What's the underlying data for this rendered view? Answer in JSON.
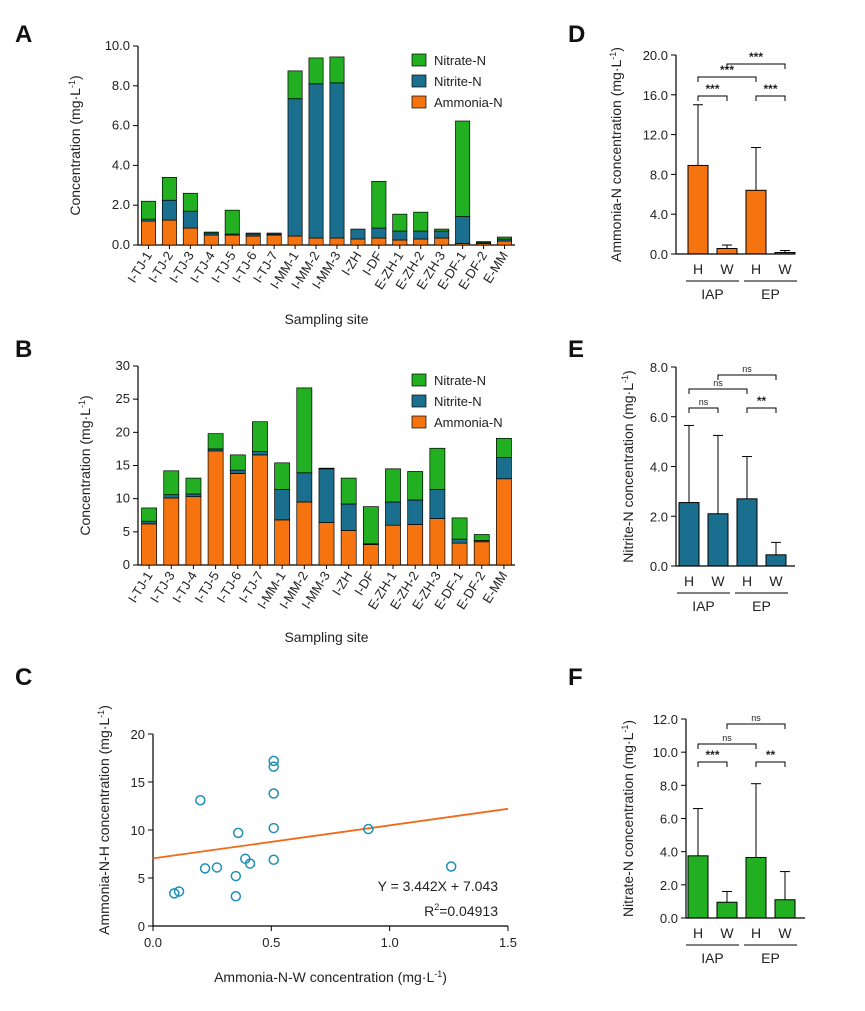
{
  "colors": {
    "nitrate": "#22b022",
    "nitrite": "#1a6e8e",
    "ammonia": "#f5740f",
    "scatter": "#1e8fb5",
    "fit": "#f06a1a"
  },
  "panel_labels": {
    "A": "A",
    "B": "B",
    "C": "C",
    "D": "D",
    "E": "E",
    "F": "F"
  },
  "chart_data": [
    {
      "id": "A",
      "type": "bar",
      "stacked": true,
      "ylabel": "Concentration (mg·L⁻¹)",
      "xlabel": "Sampling site",
      "ylim": [
        0,
        10
      ],
      "yticks": [
        "0.0",
        "2.0",
        "4.0",
        "6.0",
        "8.0",
        "10.0"
      ],
      "categories": [
        "I-TJ-1",
        "I-TJ-2",
        "I-TJ-3",
        "I-TJ-4",
        "I-TJ-5",
        "I-TJ-6",
        "I-TJ-7",
        "I-MM-1",
        "I-MM-2",
        "I-MM-3",
        "I-ZH",
        "I-DF",
        "E-ZH-1",
        "E-ZH-2",
        "E-ZH-3",
        "E-DF-1",
        "E-DF-2",
        "E-MM"
      ],
      "series": [
        {
          "name": "Ammonia-N",
          "values": [
            1.2,
            1.25,
            0.85,
            0.5,
            0.5,
            0.45,
            0.5,
            0.45,
            0.35,
            0.35,
            0.3,
            0.35,
            0.25,
            0.3,
            0.35,
            0.08,
            0.08,
            0.2
          ]
        },
        {
          "name": "Nitrite-N",
          "values": [
            0.1,
            1.0,
            0.85,
            0.1,
            0.05,
            0.1,
            0.05,
            6.9,
            7.75,
            7.8,
            0.5,
            0.5,
            0.45,
            0.4,
            0.35,
            1.35,
            0.04,
            0.1
          ]
        },
        {
          "name": "Nitrate-N",
          "values": [
            0.9,
            1.15,
            0.9,
            0.05,
            1.2,
            0.05,
            0.05,
            1.4,
            1.3,
            1.3,
            0.0,
            2.35,
            0.85,
            0.95,
            0.1,
            4.8,
            0.05,
            0.1
          ]
        }
      ],
      "legend": [
        "Nitrate-N",
        "Nitrite-N",
        "Ammonia-N"
      ],
      "legend_position": "top-right"
    },
    {
      "id": "B",
      "type": "bar",
      "stacked": true,
      "ylabel": "Concentration (mg·L⁻¹)",
      "xlabel": "Sampling site",
      "ylim": [
        0,
        30
      ],
      "yticks": [
        "0",
        "5",
        "10",
        "15",
        "20",
        "25",
        "30"
      ],
      "categories": [
        "I-TJ-1",
        "I-TJ-3",
        "I-TJ-4",
        "I-TJ-5",
        "I-TJ-6",
        "I-TJ-7",
        "I-MM-1",
        "I-MM-2",
        "I-MM-3",
        "I-ZH",
        "I-DF",
        "E-ZH-1",
        "E-ZH-2",
        "E-ZH-3",
        "E-DF-1",
        "E-DF-2",
        "E-MM"
      ],
      "series": [
        {
          "name": "Ammonia-N",
          "values": [
            6.2,
            10.1,
            10.3,
            17.2,
            13.8,
            16.6,
            6.8,
            9.5,
            6.4,
            5.2,
            3.1,
            6.0,
            6.1,
            7.0,
            3.3,
            3.5,
            13.0
          ]
        },
        {
          "name": "Nitrite-N",
          "values": [
            0.4,
            0.5,
            0.4,
            0.3,
            0.5,
            0.5,
            4.6,
            4.4,
            8.1,
            4.0,
            0.1,
            3.5,
            3.7,
            4.4,
            0.6,
            0.2,
            3.2
          ]
        },
        {
          "name": "Nitrate-N",
          "values": [
            2.0,
            3.6,
            2.4,
            2.3,
            2.3,
            4.5,
            4.0,
            12.8,
            0.1,
            3.9,
            5.6,
            5.0,
            4.3,
            6.2,
            3.2,
            0.9,
            2.9
          ]
        }
      ],
      "legend": [
        "Nitrate-N",
        "Nitrite-N",
        "Ammonia-N"
      ],
      "legend_position": "top-right"
    },
    {
      "id": "C",
      "type": "scatter",
      "xlabel": "Ammonia-N-W concentration (mg·L⁻¹)",
      "ylabel": "Ammonia-N-H concentration (mg·L⁻¹)",
      "xlim": [
        0,
        1.5
      ],
      "ylim": [
        0,
        20
      ],
      "xticks": [
        "0.0",
        "0.5",
        "1.0",
        "1.5"
      ],
      "yticks": [
        "0",
        "5",
        "10",
        "15",
        "20"
      ],
      "x": [
        0.09,
        0.11,
        0.2,
        0.22,
        0.27,
        0.35,
        0.35,
        0.36,
        0.39,
        0.41,
        0.51,
        0.51,
        0.51,
        0.51,
        0.51,
        0.91,
        1.26
      ],
      "y": [
        3.4,
        3.6,
        13.1,
        6.0,
        6.1,
        3.1,
        5.2,
        9.7,
        7.0,
        6.5,
        6.9,
        10.2,
        13.8,
        16.6,
        17.2,
        10.1,
        6.2
      ],
      "fit": {
        "slope": 3.442,
        "intercept": 7.043
      },
      "equation": "Y = 3.442X + 7.043",
      "r2_prefix": "R",
      "r2_sup": "2",
      "r2_value": "=0.04913"
    },
    {
      "id": "D",
      "type": "bar",
      "ylabel": "Ammonia-N concentration (mg·L⁻¹)",
      "ylim": [
        0,
        20
      ],
      "yticks": [
        "0.0",
        "4.0",
        "8.0",
        "12.0",
        "16.0",
        "20.0"
      ],
      "categories": [
        "H",
        "W",
        "H",
        "W"
      ],
      "groups": [
        "IAP",
        "EP"
      ],
      "values": [
        8.9,
        0.55,
        6.4,
        0.15
      ],
      "errors": [
        6.1,
        0.35,
        4.3,
        0.2
      ],
      "sig": [
        {
          "a": 0,
          "b": 1,
          "label": "***"
        },
        {
          "a": 2,
          "b": 3,
          "label": "***"
        },
        {
          "a": 0,
          "b": 2,
          "label": "***"
        },
        {
          "a": 1,
          "b": 3,
          "label": "***"
        }
      ]
    },
    {
      "id": "E",
      "type": "bar",
      "ylabel": "Nitrite-N concentration (mg·L⁻¹)",
      "ylim": [
        0,
        8
      ],
      "yticks": [
        "0.0",
        "2.0",
        "4.0",
        "6.0",
        "8.0"
      ],
      "categories": [
        "H",
        "W",
        "H",
        "W"
      ],
      "groups": [
        "IAP",
        "EP"
      ],
      "values": [
        2.55,
        2.1,
        2.7,
        0.45
      ],
      "errors": [
        3.1,
        3.15,
        1.7,
        0.5
      ],
      "sig": [
        {
          "a": 0,
          "b": 1,
          "label": "ns"
        },
        {
          "a": 2,
          "b": 3,
          "label": "**"
        },
        {
          "a": 0,
          "b": 2,
          "label": "ns"
        },
        {
          "a": 1,
          "b": 3,
          "label": "ns"
        }
      ]
    },
    {
      "id": "F",
      "type": "bar",
      "ylabel": "Nitrate-N concentration (mg·L⁻¹)",
      "ylim": [
        0,
        12
      ],
      "yticks": [
        "0.0",
        "2.0",
        "4.0",
        "6.0",
        "8.0",
        "10.0",
        "12.0"
      ],
      "categories": [
        "H",
        "W",
        "H",
        "W"
      ],
      "groups": [
        "IAP",
        "EP"
      ],
      "values": [
        3.75,
        0.95,
        3.65,
        1.1
      ],
      "errors": [
        2.85,
        0.65,
        4.45,
        1.7
      ],
      "sig": [
        {
          "a": 0,
          "b": 1,
          "label": "***"
        },
        {
          "a": 2,
          "b": 3,
          "label": "**"
        },
        {
          "a": 0,
          "b": 2,
          "label": "ns"
        },
        {
          "a": 1,
          "b": 3,
          "label": "ns"
        }
      ]
    }
  ]
}
